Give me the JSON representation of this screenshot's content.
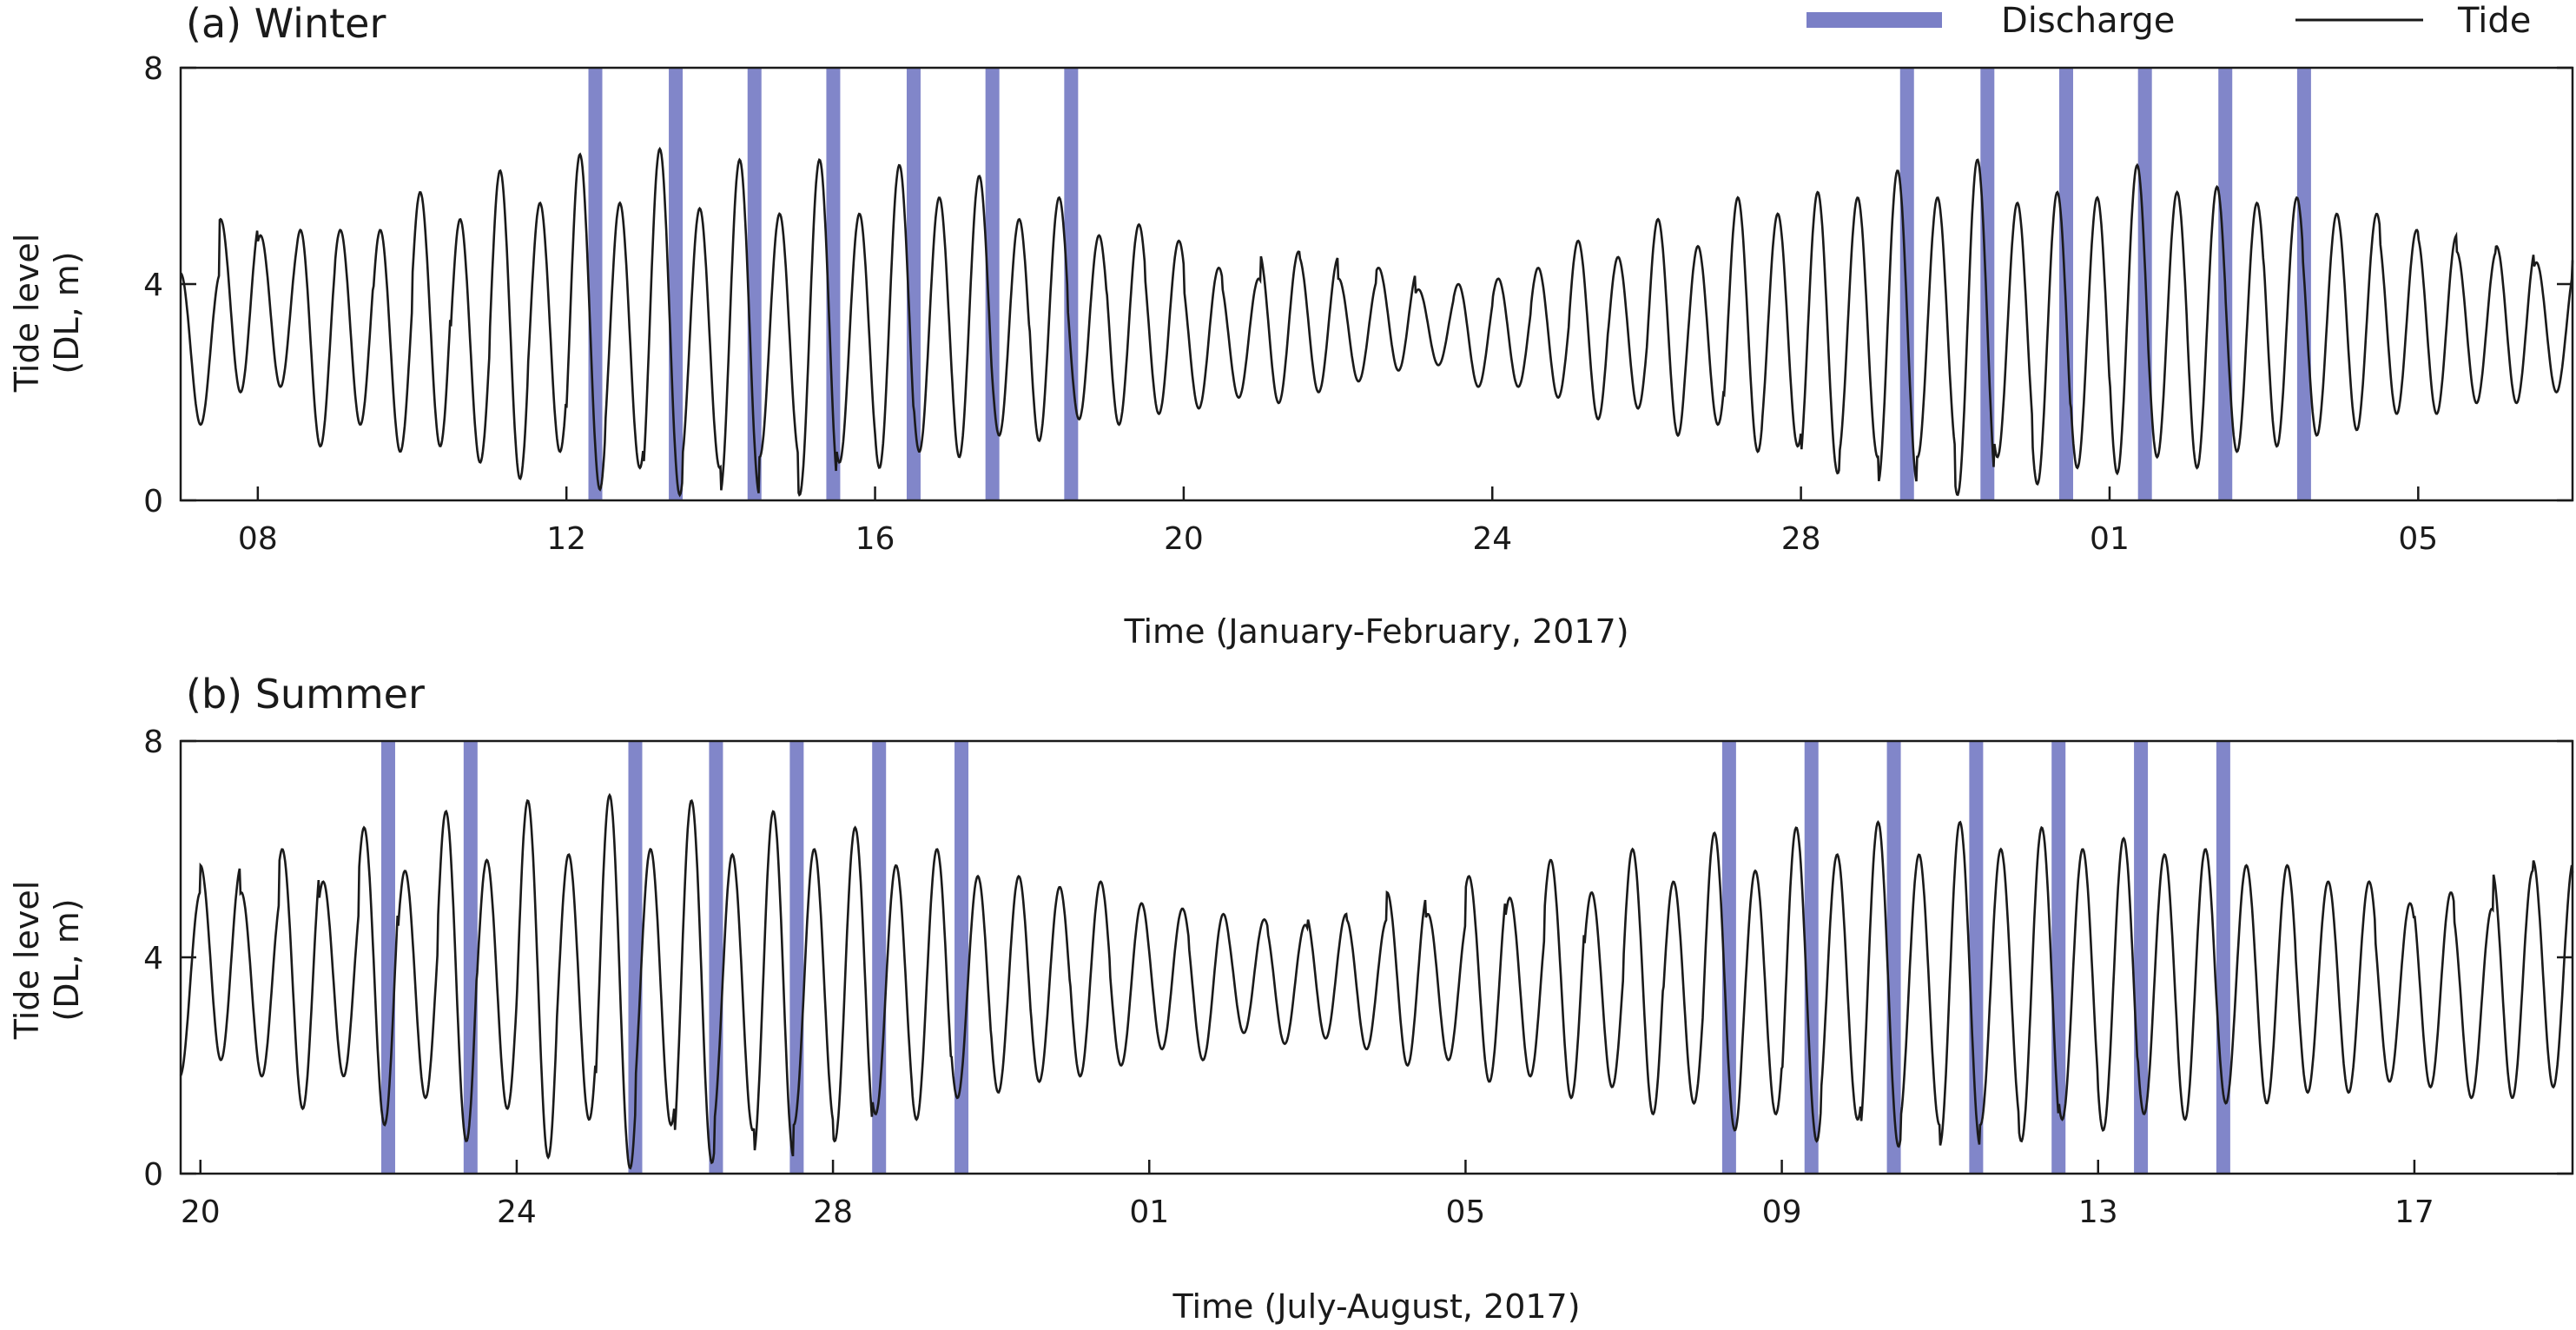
{
  "colors": {
    "tide": "#1a1a1a",
    "discharge": "#7a7fc6",
    "axis": "#1a1a1a"
  },
  "legend": {
    "placement": "top-right",
    "items": [
      {
        "label": "Discharge",
        "kind": "bar",
        "color": "#7a7fc6"
      },
      {
        "label": "Tide",
        "kind": "line",
        "color": "#1a1a1a"
      }
    ]
  },
  "chart_data": [
    {
      "type": "line",
      "title": "(a) Winter",
      "xlabel": "Time (January-February, 2017)",
      "ylabel": "Tide level\n(DL, m)",
      "ylim": [
        0,
        8
      ],
      "yticks": [
        0,
        4,
        8
      ],
      "xlim": [
        "2017-01-07",
        "2017-02-07"
      ],
      "xticks": [
        {
          "date": "2017-01-08",
          "label": "08"
        },
        {
          "date": "2017-01-12",
          "label": "12"
        },
        {
          "date": "2017-01-16",
          "label": "16"
        },
        {
          "date": "2017-01-20",
          "label": "20"
        },
        {
          "date": "2017-01-24",
          "label": "24"
        },
        {
          "date": "2017-01-28",
          "label": "28"
        },
        {
          "date": "2017-02-01",
          "label": "01"
        },
        {
          "date": "2017-02-05",
          "label": "05"
        }
      ],
      "series": [
        {
          "name": "Tide",
          "kind": "tide",
          "start": "2017-01-07 00:00",
          "unit": "m",
          "note_high_low": [
            {
              "date": "2017-01-07",
              "high": [
                4.2,
                5.2
              ],
              "low": [
                1.4,
                2.0
              ]
            },
            {
              "date": "2017-01-08",
              "high": [
                4.9,
                5.0
              ],
              "low": [
                2.1,
                1.0
              ]
            },
            {
              "date": "2017-01-09",
              "high": [
                5.0,
                5.0
              ],
              "low": [
                1.4,
                0.9
              ]
            },
            {
              "date": "2017-01-10",
              "high": [
                5.7,
                5.2
              ],
              "low": [
                1.0,
                0.7
              ]
            },
            {
              "date": "2017-01-11",
              "high": [
                6.1,
                5.5
              ],
              "low": [
                0.4,
                0.9
              ]
            },
            {
              "date": "2017-01-12",
              "high": [
                6.4,
                5.5
              ],
              "low": [
                0.2,
                0.6
              ]
            },
            {
              "date": "2017-01-13",
              "high": [
                6.5,
                5.4
              ],
              "low": [
                0.1,
                0.6
              ]
            },
            {
              "date": "2017-01-14",
              "high": [
                6.3,
                5.3
              ],
              "low": [
                0.1,
                0.8
              ]
            },
            {
              "date": "2017-01-15",
              "high": [
                6.3,
                5.3
              ],
              "low": [
                0.1,
                0.7
              ]
            },
            {
              "date": "2017-01-16",
              "high": [
                6.2,
                5.6
              ],
              "low": [
                0.6,
                0.9
              ]
            },
            {
              "date": "2017-01-17",
              "high": [
                6.0,
                5.2
              ],
              "low": [
                0.8,
                1.2
              ]
            },
            {
              "date": "2017-01-18",
              "high": [
                5.6,
                4.9
              ],
              "low": [
                1.1,
                1.5
              ]
            },
            {
              "date": "2017-01-19",
              "high": [
                5.1,
                4.8
              ],
              "low": [
                1.4,
                1.6
              ]
            },
            {
              "date": "2017-01-20",
              "high": [
                4.3,
                4.1
              ],
              "low": [
                1.7,
                1.9
              ]
            },
            {
              "date": "2017-01-21",
              "high": [
                4.6,
                4.5
              ],
              "low": [
                1.8,
                2.0
              ]
            },
            {
              "date": "2017-01-22",
              "high": [
                4.1,
                4.3
              ],
              "low": [
                2.2,
                2.4
              ]
            },
            {
              "date": "2017-01-23",
              "high": [
                3.9,
                4.0
              ],
              "low": [
                2.5,
                2.1
              ]
            },
            {
              "date": "2017-01-24",
              "high": [
                4.1,
                4.3
              ],
              "low": [
                2.1,
                1.9
              ]
            },
            {
              "date": "2017-01-25",
              "high": [
                4.8,
                4.5
              ],
              "low": [
                1.5,
                1.7
              ]
            },
            {
              "date": "2017-01-26",
              "high": [
                5.2,
                4.7
              ],
              "low": [
                1.2,
                1.4
              ]
            },
            {
              "date": "2017-01-27",
              "high": [
                5.6,
                5.3
              ],
              "low": [
                0.9,
                1.0
              ]
            },
            {
              "date": "2017-01-28",
              "high": [
                5.7,
                5.6
              ],
              "low": [
                0.5,
                0.8
              ]
            },
            {
              "date": "2017-01-29",
              "high": [
                6.1,
                5.6
              ],
              "low": [
                0.3,
                0.8
              ]
            },
            {
              "date": "2017-01-30",
              "high": [
                6.3,
                5.5
              ],
              "low": [
                0.1,
                0.8
              ]
            },
            {
              "date": "2017-01-31",
              "high": [
                5.7,
                5.6
              ],
              "low": [
                0.3,
                0.6
              ]
            },
            {
              "date": "2017-02-01",
              "high": [
                6.2,
                5.7
              ],
              "low": [
                0.5,
                0.8
              ]
            },
            {
              "date": "2017-02-02",
              "high": [
                5.8,
                5.5
              ],
              "low": [
                0.6,
                0.9
              ]
            },
            {
              "date": "2017-02-03",
              "high": [
                5.6,
                5.3
              ],
              "low": [
                1.0,
                1.2
              ]
            },
            {
              "date": "2017-02-04",
              "high": [
                5.3,
                5.0
              ],
              "low": [
                1.3,
                1.6
              ]
            },
            {
              "date": "2017-02-05",
              "high": [
                4.9,
                4.6
              ],
              "low": [
                1.6,
                1.8
              ]
            },
            {
              "date": "2017-02-06",
              "high": [
                4.7,
                4.4
              ],
              "low": [
                1.8,
                2.0
              ]
            }
          ]
        },
        {
          "name": "Discharge",
          "kind": "discharge",
          "times": [
            "2017-01-12 09:00",
            "2017-01-13 10:00",
            "2017-01-14 10:30",
            "2017-01-15 11:00",
            "2017-01-16 12:00",
            "2017-01-17 12:30",
            "2017-01-18 13:00",
            "2017-01-29 09:00",
            "2017-01-30 10:00",
            "2017-01-31 10:30",
            "2017-02-01 11:00",
            "2017-02-02 12:00",
            "2017-02-03 12:30"
          ]
        }
      ]
    },
    {
      "type": "line",
      "title": "(b) Summer",
      "xlabel": "Time (July-August, 2017)",
      "ylabel": "Tide level\n(DL, m)",
      "ylim": [
        0,
        8
      ],
      "yticks": [
        0,
        4,
        8
      ],
      "xlim": [
        "2017-07-19 18:00",
        "2017-08-19"
      ],
      "xticks": [
        {
          "date": "2017-07-20",
          "label": "20"
        },
        {
          "date": "2017-07-24",
          "label": "24"
        },
        {
          "date": "2017-07-28",
          "label": "28"
        },
        {
          "date": "2017-08-01",
          "label": "01"
        },
        {
          "date": "2017-08-05",
          "label": "05"
        },
        {
          "date": "2017-08-09",
          "label": "09"
        },
        {
          "date": "2017-08-13",
          "label": "13"
        },
        {
          "date": "2017-08-17",
          "label": "17"
        }
      ],
      "series": [
        {
          "name": "Tide",
          "kind": "tide",
          "start": "2017-07-19 18:00",
          "unit": "m",
          "note_high_low": [
            {
              "date": "2017-07-20",
              "high": [
                5.7,
                5.2
              ],
              "low": [
                2.1,
                1.8
              ]
            },
            {
              "date": "2017-07-21",
              "high": [
                6.0,
                5.4
              ],
              "low": [
                1.2,
                1.8
              ]
            },
            {
              "date": "2017-07-22",
              "high": [
                6.4,
                5.6
              ],
              "low": [
                0.9,
                1.4
              ]
            },
            {
              "date": "2017-07-23",
              "high": [
                6.7,
                5.8
              ],
              "low": [
                0.6,
                1.2
              ]
            },
            {
              "date": "2017-07-24",
              "high": [
                6.9,
                5.9
              ],
              "low": [
                0.3,
                1.0
              ]
            },
            {
              "date": "2017-07-25",
              "high": [
                7.0,
                6.0
              ],
              "low": [
                0.1,
                0.9
              ]
            },
            {
              "date": "2017-07-26",
              "high": [
                6.9,
                5.9
              ],
              "low": [
                0.2,
                0.8
              ]
            },
            {
              "date": "2017-07-27",
              "high": [
                6.7,
                6.0
              ],
              "low": [
                0.3,
                0.9
              ]
            },
            {
              "date": "2017-07-28",
              "high": [
                6.4,
                5.7
              ],
              "low": [
                0.6,
                1.1
              ]
            },
            {
              "date": "2017-07-29",
              "high": [
                6.0,
                5.5
              ],
              "low": [
                1.0,
                1.4
              ]
            },
            {
              "date": "2017-07-30",
              "high": [
                5.5,
                5.3
              ],
              "low": [
                1.5,
                1.7
              ]
            },
            {
              "date": "2017-07-31",
              "high": [
                5.4,
                5.0
              ],
              "low": [
                1.8,
                2.0
              ]
            },
            {
              "date": "2017-08-01",
              "high": [
                4.9,
                4.8
              ],
              "low": [
                2.3,
                2.1
              ]
            },
            {
              "date": "2017-08-02",
              "high": [
                4.7,
                4.6
              ],
              "low": [
                2.6,
                2.4
              ]
            },
            {
              "date": "2017-08-03",
              "high": [
                4.8,
                4.7
              ],
              "low": [
                2.5,
                2.3
              ]
            },
            {
              "date": "2017-08-04",
              "high": [
                5.2,
                4.8
              ],
              "low": [
                2.0,
                2.1
              ]
            },
            {
              "date": "2017-08-05",
              "high": [
                5.5,
                5.1
              ],
              "low": [
                1.7,
                1.8
              ]
            },
            {
              "date": "2017-08-06",
              "high": [
                5.8,
                5.2
              ],
              "low": [
                1.4,
                1.6
              ]
            },
            {
              "date": "2017-08-07",
              "high": [
                6.0,
                5.4
              ],
              "low": [
                1.1,
                1.3
              ]
            },
            {
              "date": "2017-08-08",
              "high": [
                6.3,
                5.6
              ],
              "low": [
                0.8,
                1.1
              ]
            },
            {
              "date": "2017-08-09",
              "high": [
                6.4,
                5.9
              ],
              "low": [
                0.6,
                1.0
              ]
            },
            {
              "date": "2017-08-10",
              "high": [
                6.5,
                5.9
              ],
              "low": [
                0.5,
                0.9
              ]
            },
            {
              "date": "2017-08-11",
              "high": [
                6.5,
                6.0
              ],
              "low": [
                0.5,
                0.9
              ]
            },
            {
              "date": "2017-08-12",
              "high": [
                6.4,
                6.0
              ],
              "low": [
                0.6,
                1.0
              ]
            },
            {
              "date": "2017-08-13",
              "high": [
                6.2,
                5.9
              ],
              "low": [
                0.8,
                1.1
              ]
            },
            {
              "date": "2017-08-14",
              "high": [
                6.0,
                5.7
              ],
              "low": [
                1.0,
                1.3
              ]
            },
            {
              "date": "2017-08-15",
              "high": [
                5.7,
                5.4
              ],
              "low": [
                1.3,
                1.5
              ]
            },
            {
              "date": "2017-08-16",
              "high": [
                5.4,
                5.0
              ],
              "low": [
                1.5,
                1.7
              ]
            },
            {
              "date": "2017-08-17",
              "high": [
                5.2,
                4.9
              ],
              "low": [
                1.6,
                1.4
              ]
            },
            {
              "date": "2017-08-18",
              "high": [
                5.6,
                5.8
              ],
              "low": [
                1.4,
                1.6
              ]
            }
          ]
        },
        {
          "name": "Discharge",
          "kind": "discharge",
          "times": [
            "2017-07-22 09:00",
            "2017-07-23 10:00",
            "2017-07-25 12:00",
            "2017-07-26 12:30",
            "2017-07-27 13:00",
            "2017-07-28 14:00",
            "2017-07-29 15:00",
            "2017-08-08 08:00",
            "2017-08-09 09:00",
            "2017-08-10 10:00",
            "2017-08-11 11:00",
            "2017-08-12 12:00",
            "2017-08-13 13:00",
            "2017-08-14 14:00"
          ]
        }
      ]
    }
  ]
}
